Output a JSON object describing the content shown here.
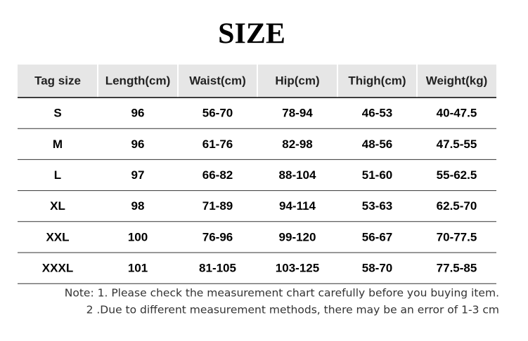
{
  "title": "SIZE",
  "table": {
    "headers": [
      "Tag  size",
      "Length(cm)",
      "Waist(cm)",
      "Hip(cm)",
      "Thigh(cm)",
      "Weight(kg)"
    ],
    "rows": [
      [
        "S",
        "96",
        "56-70",
        "78-94",
        "46-53",
        "40-47.5"
      ],
      [
        "M",
        "96",
        "61-76",
        "82-98",
        "48-56",
        "47.5-55"
      ],
      [
        "L",
        "97",
        "66-82",
        "88-104",
        "51-60",
        "55-62.5"
      ],
      [
        "XL",
        "98",
        "71-89",
        "94-114",
        "53-63",
        "62.5-70"
      ],
      [
        "XXL",
        "100",
        "76-96",
        "99-120",
        "56-67",
        "70-77.5"
      ],
      [
        "XXXL",
        "101",
        "81-105",
        "103-125",
        "58-70",
        "77.5-85"
      ]
    ]
  },
  "notes": [
    "Note: 1. Please check the measurement chart carefully before you buying item.",
    "2 .Due to different measurement methods, there may be an error of 1-3 cm"
  ]
}
